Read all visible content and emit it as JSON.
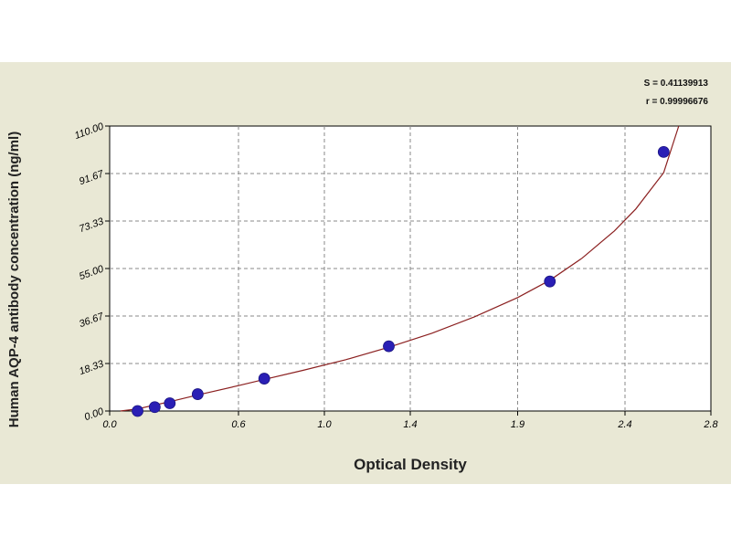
{
  "chart_data": {
    "type": "scatter",
    "xlabel": "Optical Density",
    "ylabel": "Human AQP-4 antibody concentration (ng/ml)",
    "xlim": [
      0,
      2.8
    ],
    "ylim": [
      0,
      110
    ],
    "x_ticks": [
      0.0,
      0.6,
      1.0,
      1.4,
      1.9,
      2.4,
      2.8
    ],
    "x_tick_labels": [
      "0.0",
      "0.6",
      "1.0",
      "1.4",
      "1.9",
      "2.4",
      "2.8"
    ],
    "y_ticks": [
      0,
      18.33,
      36.67,
      55,
      73.33,
      91.67,
      110
    ],
    "y_tick_labels": [
      "0.00",
      "18.33",
      "36.67",
      "55.00",
      "73.33",
      "91.67",
      "110.00"
    ],
    "grid": true,
    "series": [
      {
        "points": [
          {
            "x": 0.13,
            "y": 0.0
          },
          {
            "x": 0.21,
            "y": 1.5
          },
          {
            "x": 0.28,
            "y": 3.0
          },
          {
            "x": 0.41,
            "y": 6.5
          },
          {
            "x": 0.72,
            "y": 12.5
          },
          {
            "x": 1.3,
            "y": 25.0
          },
          {
            "x": 2.05,
            "y": 50.0
          },
          {
            "x": 2.58,
            "y": 100.0
          }
        ],
        "fit": {
          "type": "curve",
          "points": [
            [
              0.05,
              0.0
            ],
            [
              0.13,
              0.8
            ],
            [
              0.21,
              2.3
            ],
            [
              0.28,
              3.6
            ],
            [
              0.41,
              6.2
            ],
            [
              0.6,
              9.8
            ],
            [
              0.72,
              12.2
            ],
            [
              0.9,
              15.7
            ],
            [
              1.1,
              19.8
            ],
            [
              1.3,
              24.6
            ],
            [
              1.5,
              30.0
            ],
            [
              1.7,
              36.4
            ],
            [
              1.9,
              43.8
            ],
            [
              2.05,
              50.5
            ],
            [
              2.2,
              59.0
            ],
            [
              2.35,
              69.5
            ],
            [
              2.45,
              78.0
            ],
            [
              2.58,
              92.0
            ],
            [
              2.65,
              110.0
            ]
          ]
        }
      }
    ],
    "stats": {
      "s_text": "S = 0.41139913",
      "r_text": "r = 0.99996676"
    },
    "colors": {
      "marker": "#2a1fb5",
      "curve": "#8b2020",
      "panel": "#e9e8d5",
      "grid": "#8a8a8a"
    }
  }
}
